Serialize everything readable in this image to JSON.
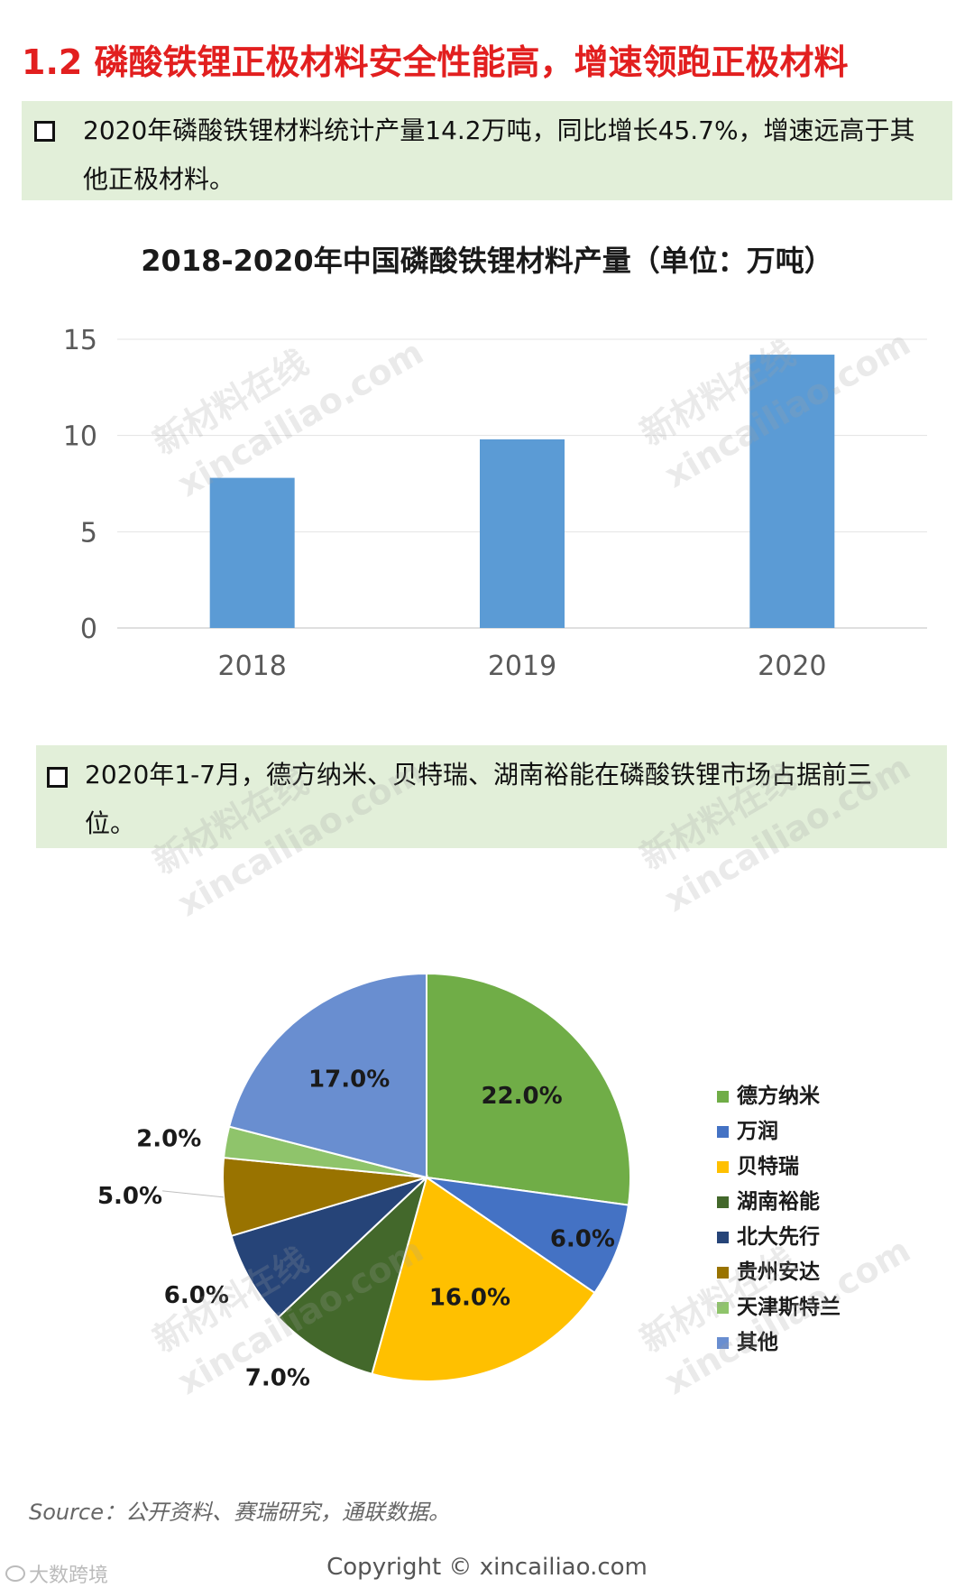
{
  "heading": "1.2 磷酸铁锂正极材料安全性能高，增速领跑正极材料",
  "callout1": {
    "line1": "2020年磷酸铁锂材料统计产量14.2万吨，同比增长45.7%，增速远高于其",
    "line2": "他正极材料。"
  },
  "callout2": {
    "line1": "2020年1-7月，德方纳米、贝特瑞、湖南裕能在磷酸铁锂市场占据前三",
    "line2": "位。"
  },
  "watermark": {
    "line1": "新材料在线",
    "line2": "xincailiao.com"
  },
  "source": "Source：公开资料、赛瑞研究，通联数据。",
  "copyright": "Copyright © xincailiao.com",
  "corner_logo": "大数跨境",
  "colors": {
    "heading": "#e21f1f",
    "callout_bg": "#e2efd9",
    "bar": "#5b9bd5"
  },
  "chart_data": [
    {
      "type": "bar",
      "title": "2018-2020年中国磷酸铁锂材料产量（单位：万吨）",
      "categories": [
        "2018",
        "2019",
        "2020"
      ],
      "values": [
        7.8,
        9.8,
        14.2
      ],
      "ylim": [
        0,
        15
      ],
      "yticks": [
        0,
        5,
        10,
        15
      ],
      "grid": true,
      "color": "#5b9bd5"
    },
    {
      "type": "pie",
      "legend_position": "right",
      "slices": [
        {
          "label": "德方纳米",
          "value": 22.0,
          "display": "22.0%",
          "color": "#70ad47"
        },
        {
          "label": "万润",
          "value": 6.0,
          "display": "6.0%",
          "color": "#4472c4"
        },
        {
          "label": "贝特瑞",
          "value": 16.0,
          "display": "16.0%",
          "color": "#ffc000"
        },
        {
          "label": "湖南裕能",
          "value": 7.0,
          "display": "7.0%",
          "color": "#43682b"
        },
        {
          "label": "北大先行",
          "value": 6.0,
          "display": "6.0%",
          "color": "#264478"
        },
        {
          "label": "贵州安达",
          "value": 5.0,
          "display": "5.0%",
          "color": "#997300"
        },
        {
          "label": "天津斯特兰",
          "value": 2.0,
          "display": "2.0%",
          "color": "#8fc46b"
        },
        {
          "label": "其他",
          "value": 17.0,
          "display": "17.0%",
          "color": "#698ed0"
        }
      ]
    }
  ]
}
